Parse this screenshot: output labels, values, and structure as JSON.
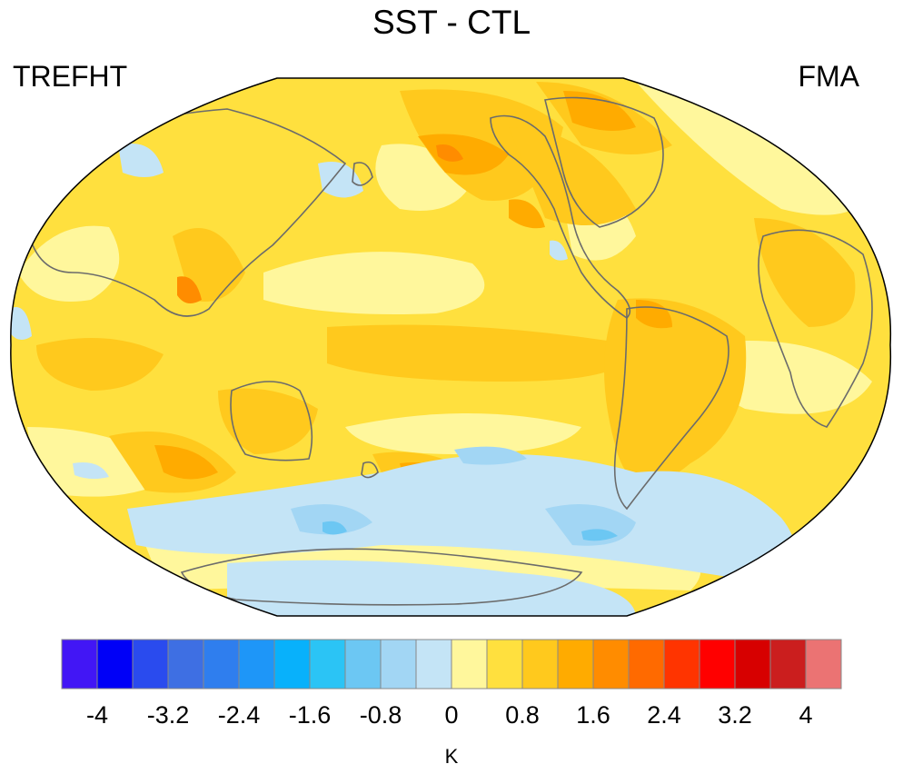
{
  "title": "SST - CTL",
  "variable": "TREFHT",
  "season": "FMA",
  "units": "K",
  "colorbar": {
    "colors": [
      "#4216f5",
      "#0000f7",
      "#2a4bee",
      "#3e6fe3",
      "#2f7eee",
      "#1e96f8",
      "#08b1fb",
      "#2bc4f5",
      "#6cc7f3",
      "#a2d6f4",
      "#c4e4f6",
      "#fff79c",
      "#ffe03e",
      "#ffc91d",
      "#ffab00",
      "#ff8c00",
      "#ff6a00",
      "#ff3400",
      "#ff0000",
      "#d70000",
      "#cb1e1e",
      "#eb7373"
    ],
    "tick_labels": [
      "-4",
      "-3.2",
      "-2.4",
      "-1.6",
      "-0.8",
      "0",
      "0.8",
      "1.6",
      "2.4",
      "3.2",
      "4"
    ]
  }
}
